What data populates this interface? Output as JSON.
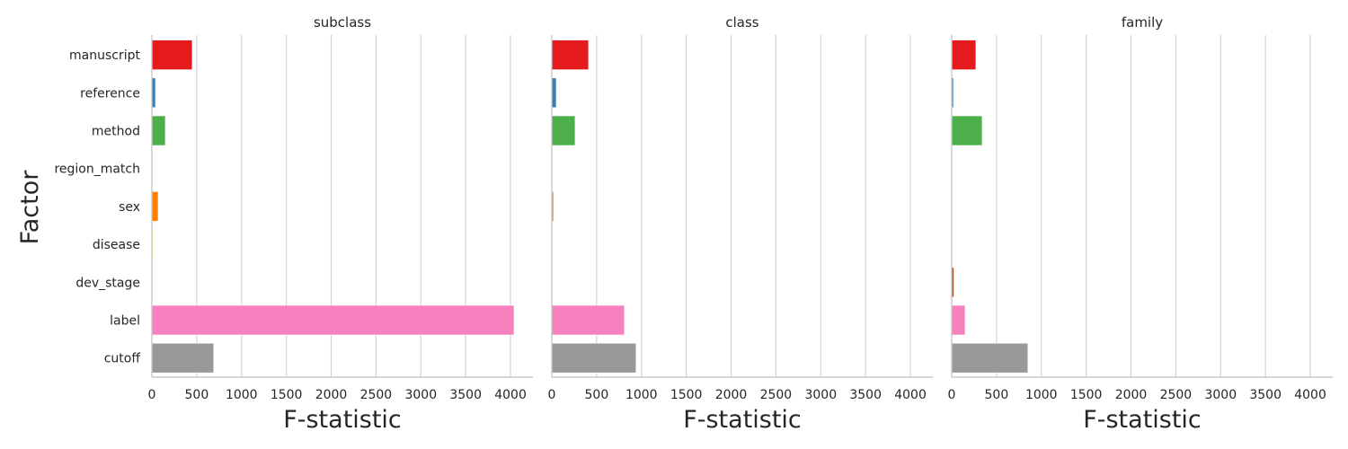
{
  "chart_data": {
    "type": "bar",
    "orientation": "horizontal",
    "ylabel": "Factor",
    "xlabel": "F-statistic",
    "xlim": [
      0,
      4250
    ],
    "xticks": [
      0,
      500,
      1000,
      1500,
      2000,
      2500,
      3000,
      3500,
      4000
    ],
    "grid": "vertical",
    "categories": [
      "manuscript",
      "reference",
      "method",
      "region_match",
      "sex",
      "disease",
      "dev_stage",
      "label",
      "cutoff"
    ],
    "colors": [
      "#e41a1c",
      "#377eb8",
      "#4daf4a",
      "#984ea3",
      "#ff7f00",
      "#ffff33",
      "#a65628",
      "#f781bf",
      "#999999"
    ],
    "panels": [
      {
        "title": "subclass",
        "values": [
          450,
          40,
          150,
          5,
          70,
          15,
          5,
          4040,
          690
        ]
      },
      {
        "title": "class",
        "values": [
          410,
          50,
          260,
          5,
          20,
          5,
          5,
          810,
          940
        ]
      },
      {
        "title": "family",
        "values": [
          270,
          20,
          340,
          5,
          5,
          5,
          25,
          150,
          850
        ]
      }
    ]
  }
}
